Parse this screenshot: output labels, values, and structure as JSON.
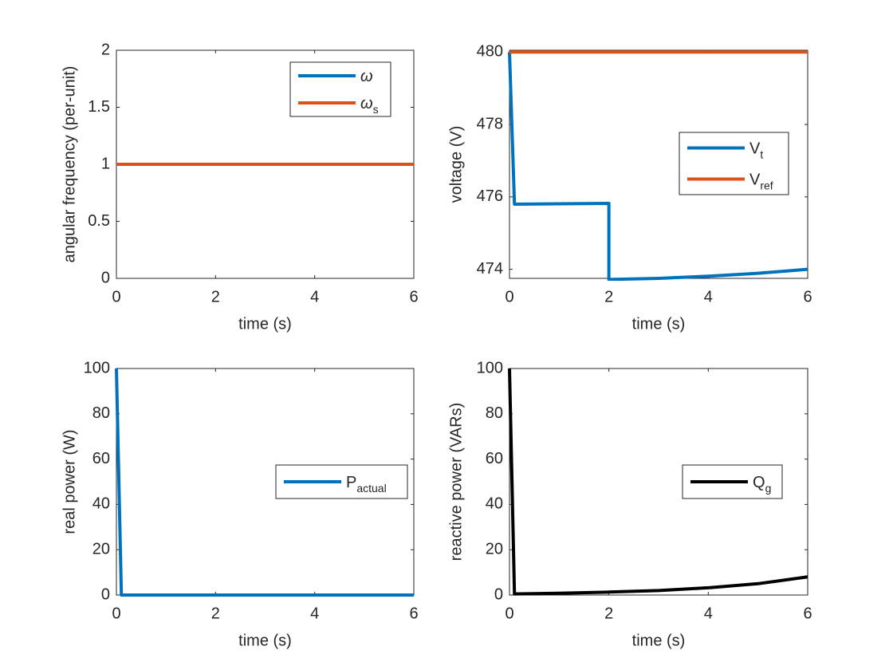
{
  "colors": {
    "blue": "#0072BD",
    "orange": "#D95319",
    "black": "#000000",
    "axis": "#262626"
  },
  "chart_data": [
    {
      "type": "line",
      "xlabel": "time (s)",
      "ylabel": "angular frequency (per-unit)",
      "xlim": [
        0,
        6
      ],
      "ylim": [
        0,
        2
      ],
      "xticks": [
        "0",
        "2",
        "4",
        "6"
      ],
      "yticks": [
        "0",
        "0.5",
        "1",
        "1.5",
        "2"
      ],
      "legend_position": "top-right",
      "series": [
        {
          "name": "ω",
          "name_sub": "",
          "color": "#0072BD",
          "x": [
            0,
            6
          ],
          "y": [
            1,
            1
          ]
        },
        {
          "name": "ω",
          "name_sub": "s",
          "color": "#D95319",
          "x": [
            0,
            6
          ],
          "y": [
            1,
            1
          ]
        }
      ]
    },
    {
      "type": "line",
      "xlabel": "time (s)",
      "ylabel": "voltage (V)",
      "xlim": [
        0,
        6
      ],
      "ylim": [
        473.75,
        480.05
      ],
      "xticks": [
        "0",
        "2",
        "4",
        "6"
      ],
      "yticks": [
        "474",
        "476",
        "478",
        "480"
      ],
      "legend_position": "right",
      "series": [
        {
          "name": "V",
          "name_sub": "t",
          "color": "#0072BD",
          "x": [
            0,
            0.1,
            1,
            2,
            2.0001,
            3,
            4,
            5,
            6
          ],
          "y": [
            480,
            475.8,
            475.81,
            475.82,
            473.72,
            473.75,
            473.81,
            473.89,
            474.0
          ]
        },
        {
          "name": "V",
          "name_sub": "ref",
          "color": "#D95319",
          "x": [
            0,
            6
          ],
          "y": [
            480,
            480
          ]
        }
      ]
    },
    {
      "type": "line",
      "xlabel": "time (s)",
      "ylabel": "real power (W)",
      "xlim": [
        0,
        6
      ],
      "ylim": [
        0,
        100
      ],
      "xticks": [
        "0",
        "2",
        "4",
        "6"
      ],
      "yticks": [
        "0",
        "20",
        "40",
        "60",
        "80",
        "100"
      ],
      "legend_position": "right",
      "series": [
        {
          "name": "P",
          "name_sub": "actual",
          "color": "#0072BD",
          "x": [
            0,
            0.1,
            1,
            2,
            3,
            4,
            5,
            6
          ],
          "y": [
            100,
            0,
            0,
            0,
            0,
            0,
            0,
            0
          ]
        }
      ]
    },
    {
      "type": "line",
      "xlabel": "time (s)",
      "ylabel": "reactive power (VARs)",
      "xlim": [
        0,
        6
      ],
      "ylim": [
        0,
        100
      ],
      "xticks": [
        "0",
        "2",
        "4",
        "6"
      ],
      "yticks": [
        "0",
        "20",
        "40",
        "60",
        "80",
        "100"
      ],
      "legend_position": "right",
      "series": [
        {
          "name": "Q",
          "name_sub": "g",
          "color": "#000000",
          "x": [
            0,
            0.1,
            1,
            2,
            3,
            4,
            5,
            6
          ],
          "y": [
            100,
            0.5,
            0.8,
            1.3,
            2.0,
            3.2,
            5.0,
            8.0
          ]
        }
      ]
    }
  ]
}
